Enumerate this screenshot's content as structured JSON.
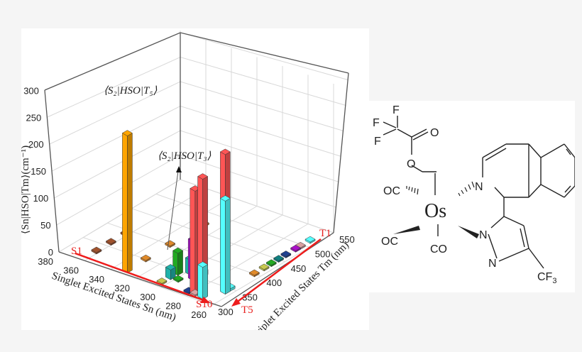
{
  "chart_data": {
    "type": "bar3d",
    "title": "",
    "zlabel": "⟨S_n|H_SO|T_m⟩ (cm⁻¹)",
    "xlabel": "Singlet Excited States S_n (nm)",
    "ylabel": "Triplet Excited States T_m (nm)",
    "zlim": [
      0,
      300
    ],
    "z_ticks": [
      0,
      50,
      100,
      150,
      200,
      250,
      300
    ],
    "x_ticks": [
      380,
      360,
      340,
      320,
      300,
      280,
      260
    ],
    "y_ticks": [
      300,
      350,
      400,
      450,
      500,
      550
    ],
    "grid": true,
    "annotations": [
      {
        "text": "⟨S2|HSO|T5⟩",
        "value": 280
      },
      {
        "text": "⟨S2|HSO|T3⟩",
        "value": 5
      }
    ],
    "state_markers": {
      "singlet_start": "S1",
      "singlet_end": "S10",
      "triplet_start": "T1",
      "triplet_end": "T5"
    },
    "bars": [
      {
        "sn": 362,
        "tm": 330,
        "value": 3,
        "color": "#a0522d"
      },
      {
        "sn": 362,
        "tm": 360,
        "value": 3,
        "color": "#a0522d"
      },
      {
        "sn": 362,
        "tm": 390,
        "value": 3,
        "color": "#a0522d"
      },
      {
        "sn": 331,
        "tm": 312,
        "value": 280,
        "color": "#ffa500"
      },
      {
        "sn": 331,
        "tm": 350,
        "value": 3,
        "color": "#e08a2a"
      },
      {
        "sn": 331,
        "tm": 400,
        "value": 3,
        "color": "#e08a2a"
      },
      {
        "sn": 331,
        "tm": 470,
        "value": 3,
        "color": "#e08a2a"
      },
      {
        "sn": 304,
        "tm": 312,
        "value": 3,
        "color": "#c8c850"
      },
      {
        "sn": 304,
        "tm": 330,
        "value": 20,
        "color": "#20b2aa"
      },
      {
        "sn": 304,
        "tm": 345,
        "value": 45,
        "color": "#22aa22"
      },
      {
        "sn": 298,
        "tm": 330,
        "value": 3,
        "color": "#22aa22"
      },
      {
        "sn": 298,
        "tm": 355,
        "value": 30,
        "color": "#20b2aa"
      },
      {
        "sn": 298,
        "tm": 380,
        "value": 145,
        "color": "#20b2aa"
      },
      {
        "sn": 292,
        "tm": 345,
        "value": 80,
        "color": "#aa10c8"
      },
      {
        "sn": 290,
        "tm": 360,
        "value": 10,
        "color": "#2060c0"
      },
      {
        "sn": 286,
        "tm": 340,
        "value": 15,
        "color": "#aa10c8"
      },
      {
        "sn": 283,
        "tm": 312,
        "value": 3,
        "color": "#204090"
      },
      {
        "sn": 278,
        "tm": 312,
        "value": 215,
        "color": "#ff5555"
      },
      {
        "sn": 278,
        "tm": 312,
        "value": 3,
        "color": "#d8a0a0"
      },
      {
        "sn": 272,
        "tm": 312,
        "value": 245,
        "color": "#ff5555"
      },
      {
        "sn": 272,
        "tm": 312,
        "value": 65,
        "color": "#55ffff"
      },
      {
        "sn": 265,
        "tm": 340,
        "value": 285,
        "color": "#ff5555"
      },
      {
        "sn": 265,
        "tm": 340,
        "value": 190,
        "color": "#55ffff"
      },
      {
        "sn": 265,
        "tm": 350,
        "value": 5,
        "color": "#55ffff"
      },
      {
        "sn": 265,
        "tm": 400,
        "value": 3,
        "color": "#e08a2a"
      },
      {
        "sn": 265,
        "tm": 420,
        "value": 3,
        "color": "#c8c850"
      },
      {
        "sn": 265,
        "tm": 435,
        "value": 3,
        "color": "#22aa22"
      },
      {
        "sn": 265,
        "tm": 450,
        "value": 3,
        "color": "#108080"
      },
      {
        "sn": 265,
        "tm": 465,
        "value": 3,
        "color": "#204090"
      },
      {
        "sn": 265,
        "tm": 485,
        "value": 3,
        "color": "#aa10c8"
      },
      {
        "sn": 265,
        "tm": 495,
        "value": 3,
        "color": "#d8a0a0"
      },
      {
        "sn": 265,
        "tm": 515,
        "value": 3,
        "color": "#55ffff"
      }
    ]
  },
  "chart_labels": {
    "z_axis_title": "⟨Sn|HSO|Tm⟩(cm⁻¹)",
    "x_axis_title": "Singlet Excited States Sn (nm)",
    "y_axis_title": "Triplet Excited States Tm (nm)",
    "annot_t5": "⟨S₂|HSO|T₅⟩",
    "annot_t3": "⟨S₂|HSO|T₃⟩",
    "s1": "S1",
    "s10": "S10",
    "t1": "T1",
    "t5": "T5"
  },
  "molecule": {
    "central_metal": "Os",
    "ligands": {
      "co_top_left": "OC",
      "co_bottom_left": "OC",
      "co_bottom": "CO",
      "n_isoquinoline": "N",
      "n_pyrazole_1": "N",
      "n_pyrazole_2": "N",
      "cf3": "CF3",
      "f1": "F",
      "f2": "F",
      "f3": "F",
      "o_carbonyl": "O",
      "o_ester": "O"
    }
  }
}
